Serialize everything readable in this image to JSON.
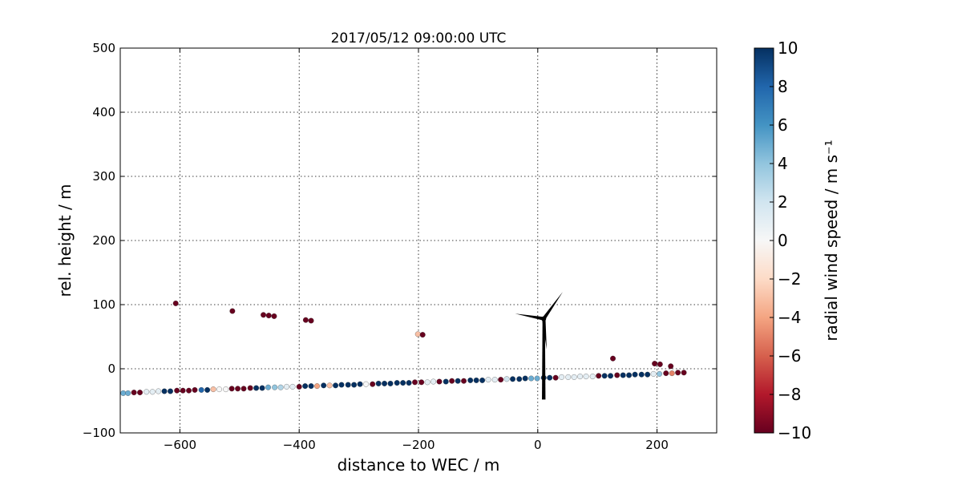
{
  "chart_data": {
    "type": "scatter",
    "title": "2017/05/12 09:00:00 UTC",
    "xlabel": "distance to WEC / m",
    "ylabel": "rel. height / m",
    "xlim": [
      -700,
      300
    ],
    "ylim": [
      -100,
      500
    ],
    "xticks": [
      -600,
      -400,
      -200,
      0,
      200
    ],
    "yticks": [
      -100,
      0,
      100,
      200,
      300,
      400,
      500
    ],
    "xtick_labels": [
      "−600",
      "−400",
      "−200",
      "0",
      "200"
    ],
    "ytick_labels": [
      "−100",
      "0",
      "100",
      "200",
      "300",
      "400",
      "500"
    ],
    "grid": true,
    "colorbar": {
      "label": "radial wind speed / m s⁻¹",
      "range": [
        -10,
        10
      ],
      "ticks": [
        -10,
        -8,
        -6,
        -4,
        -2,
        0,
        2,
        4,
        6,
        8,
        10
      ],
      "tick_labels": [
        "−10",
        "−8",
        "−6",
        "−4",
        "−2",
        "0",
        "2",
        "4",
        "6",
        "8",
        "10"
      ],
      "colormap": "RdBu",
      "colors": [
        "#67001f",
        "#b2182b",
        "#d6604d",
        "#f4a582",
        "#fddbc7",
        "#f7f7f7",
        "#d1e5f0",
        "#92c5de",
        "#4393c3",
        "#2166ac",
        "#053061"
      ]
    },
    "turbine": {
      "hub": [
        10,
        78
      ],
      "tower_base": [
        10,
        -48
      ],
      "blade_tips": [
        [
          -38,
          86
        ],
        [
          42,
          120
        ],
        [
          15,
          30
        ]
      ]
    },
    "points": [
      {
        "x": -695,
        "y": -38,
        "v": 5
      },
      {
        "x": -687,
        "y": -38,
        "v": 5
      },
      {
        "x": -677,
        "y": -37,
        "v": -10
      },
      {
        "x": -667,
        "y": -37,
        "v": -10
      },
      {
        "x": -656,
        "y": -36,
        "v": 1
      },
      {
        "x": -646,
        "y": -36,
        "v": 1
      },
      {
        "x": -636,
        "y": -35,
        "v": 1
      },
      {
        "x": -626,
        "y": -35,
        "v": 10
      },
      {
        "x": -616,
        "y": -35,
        "v": 10
      },
      {
        "x": -605,
        "y": -34,
        "v": -10
      },
      {
        "x": -595,
        "y": -34,
        "v": -10
      },
      {
        "x": -585,
        "y": -34,
        "v": -10
      },
      {
        "x": -575,
        "y": -33,
        "v": -10
      },
      {
        "x": -564,
        "y": -33,
        "v": 8
      },
      {
        "x": -554,
        "y": -33,
        "v": 10
      },
      {
        "x": -544,
        "y": -32,
        "v": -3
      },
      {
        "x": -534,
        "y": -32,
        "v": 0
      },
      {
        "x": -523,
        "y": -32,
        "v": 0
      },
      {
        "x": -513,
        "y": -31,
        "v": -10
      },
      {
        "x": -503,
        "y": -31,
        "v": -10
      },
      {
        "x": -493,
        "y": -31,
        "v": -10
      },
      {
        "x": -482,
        "y": -30,
        "v": -10
      },
      {
        "x": -472,
        "y": -30,
        "v": 10
      },
      {
        "x": -462,
        "y": -30,
        "v": 10
      },
      {
        "x": -452,
        "y": -29,
        "v": 5
      },
      {
        "x": -441,
        "y": -29,
        "v": 4
      },
      {
        "x": -431,
        "y": -29,
        "v": 3
      },
      {
        "x": -421,
        "y": -28,
        "v": 1
      },
      {
        "x": -411,
        "y": -28,
        "v": 1
      },
      {
        "x": -400,
        "y": -28,
        "v": -10
      },
      {
        "x": -390,
        "y": -27,
        "v": 10
      },
      {
        "x": -380,
        "y": -27,
        "v": 10
      },
      {
        "x": -370,
        "y": -27,
        "v": -4
      },
      {
        "x": -359,
        "y": -26,
        "v": 10
      },
      {
        "x": -349,
        "y": -26,
        "v": -3
      },
      {
        "x": -339,
        "y": -26,
        "v": 10
      },
      {
        "x": -329,
        "y": -25,
        "v": 10
      },
      {
        "x": -318,
        "y": -25,
        "v": 10
      },
      {
        "x": -308,
        "y": -25,
        "v": 10
      },
      {
        "x": -298,
        "y": -24,
        "v": 10
      },
      {
        "x": -288,
        "y": -24,
        "v": 0
      },
      {
        "x": -277,
        "y": -24,
        "v": -10
      },
      {
        "x": -267,
        "y": -23,
        "v": 10
      },
      {
        "x": -257,
        "y": -23,
        "v": 10
      },
      {
        "x": -247,
        "y": -23,
        "v": 10
      },
      {
        "x": -236,
        "y": -22,
        "v": 10
      },
      {
        "x": -226,
        "y": -22,
        "v": 10
      },
      {
        "x": -216,
        "y": -22,
        "v": 10
      },
      {
        "x": -206,
        "y": -21,
        "v": -10
      },
      {
        "x": -195,
        "y": -21,
        "v": -10
      },
      {
        "x": -185,
        "y": -21,
        "v": 1
      },
      {
        "x": -175,
        "y": -20,
        "v": 1
      },
      {
        "x": -165,
        "y": -20,
        "v": -10
      },
      {
        "x": -154,
        "y": -20,
        "v": 10
      },
      {
        "x": -144,
        "y": -19,
        "v": -10
      },
      {
        "x": -134,
        "y": -19,
        "v": 10
      },
      {
        "x": -124,
        "y": -19,
        "v": -10
      },
      {
        "x": -113,
        "y": -18,
        "v": 10
      },
      {
        "x": -103,
        "y": -18,
        "v": 10
      },
      {
        "x": -93,
        "y": -18,
        "v": 10
      },
      {
        "x": -83,
        "y": -17,
        "v": 1
      },
      {
        "x": -72,
        "y": -17,
        "v": 1
      },
      {
        "x": -62,
        "y": -17,
        "v": -10
      },
      {
        "x": -52,
        "y": -16,
        "v": 2
      },
      {
        "x": -42,
        "y": -16,
        "v": 10
      },
      {
        "x": -31,
        "y": -16,
        "v": 10
      },
      {
        "x": -21,
        "y": -15,
        "v": 10
      },
      {
        "x": -11,
        "y": -15,
        "v": 5
      },
      {
        "x": -1,
        "y": -15,
        "v": 5
      },
      {
        "x": 10,
        "y": -14,
        "v": 10
      },
      {
        "x": 20,
        "y": -14,
        "v": 10
      },
      {
        "x": 30,
        "y": -14,
        "v": -10
      },
      {
        "x": 40,
        "y": -13,
        "v": 1
      },
      {
        "x": 51,
        "y": -13,
        "v": 1
      },
      {
        "x": 61,
        "y": -13,
        "v": 1
      },
      {
        "x": 71,
        "y": -12,
        "v": 1
      },
      {
        "x": 81,
        "y": -12,
        "v": 1
      },
      {
        "x": 92,
        "y": -12,
        "v": 1
      },
      {
        "x": 102,
        "y": -11,
        "v": -10
      },
      {
        "x": 112,
        "y": -11,
        "v": 10
      },
      {
        "x": 122,
        "y": -11,
        "v": 10
      },
      {
        "x": 133,
        "y": -10,
        "v": -10
      },
      {
        "x": 143,
        "y": -10,
        "v": 10
      },
      {
        "x": 153,
        "y": -10,
        "v": 10
      },
      {
        "x": 163,
        "y": -9,
        "v": 10
      },
      {
        "x": 174,
        "y": -9,
        "v": 10
      },
      {
        "x": 184,
        "y": -9,
        "v": 10
      },
      {
        "x": 194,
        "y": -8,
        "v": 1
      },
      {
        "x": 204,
        "y": -8,
        "v": 4
      },
      {
        "x": 215,
        "y": -7,
        "v": -10
      },
      {
        "x": 225,
        "y": -7,
        "v": -5
      },
      {
        "x": 235,
        "y": -6,
        "v": -10
      },
      {
        "x": 245,
        "y": -6,
        "v": -10
      },
      {
        "x": -607,
        "y": 102,
        "v": -10
      },
      {
        "x": -512,
        "y": 90,
        "v": -10
      },
      {
        "x": -460,
        "y": 84,
        "v": -10
      },
      {
        "x": -451,
        "y": 83,
        "v": -10
      },
      {
        "x": -442,
        "y": 82,
        "v": -10
      },
      {
        "x": -389,
        "y": 76,
        "v": -10
      },
      {
        "x": -380,
        "y": 75,
        "v": -10
      },
      {
        "x": -201,
        "y": 54,
        "v": -3
      },
      {
        "x": -193,
        "y": 53,
        "v": -10
      },
      {
        "x": 126,
        "y": 16,
        "v": -10
      },
      {
        "x": 196,
        "y": 8,
        "v": -10
      },
      {
        "x": 205,
        "y": 7,
        "v": -10
      },
      {
        "x": 223,
        "y": 4,
        "v": -10
      }
    ]
  }
}
